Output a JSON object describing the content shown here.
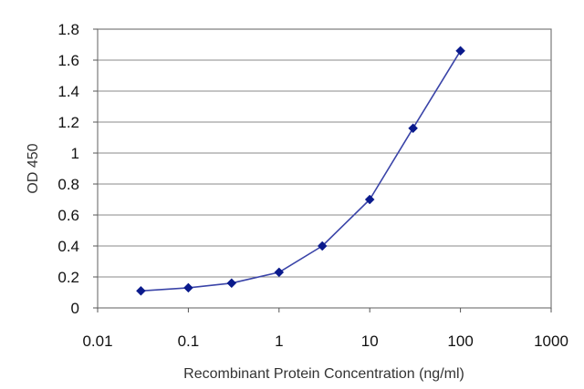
{
  "chart_data": {
    "type": "line",
    "title": "",
    "xlabel": "Recombinant Protein Concentration (ng/ml)",
    "ylabel": "OD 450",
    "x_scale": "log",
    "xlim": [
      0.01,
      1000
    ],
    "ylim": [
      0,
      1.8
    ],
    "x_ticks": [
      "0.01",
      "0.1",
      "1",
      "10",
      "100",
      "1000"
    ],
    "y_ticks": [
      "0",
      "0.2",
      "0.4",
      "0.6",
      "0.8",
      "1",
      "1.2",
      "1.4",
      "1.6",
      "1.8"
    ],
    "grid": "horizontal",
    "legend": "none",
    "series": [
      {
        "x": [
          0.03,
          0.1,
          0.3,
          1,
          3,
          10,
          30,
          100
        ],
        "y": [
          0.11,
          0.13,
          0.16,
          0.23,
          0.4,
          0.7,
          1.16,
          1.66
        ],
        "color": "#3a44a8",
        "marker": "diamond",
        "marker_color": "#0a1a8c"
      }
    ]
  }
}
